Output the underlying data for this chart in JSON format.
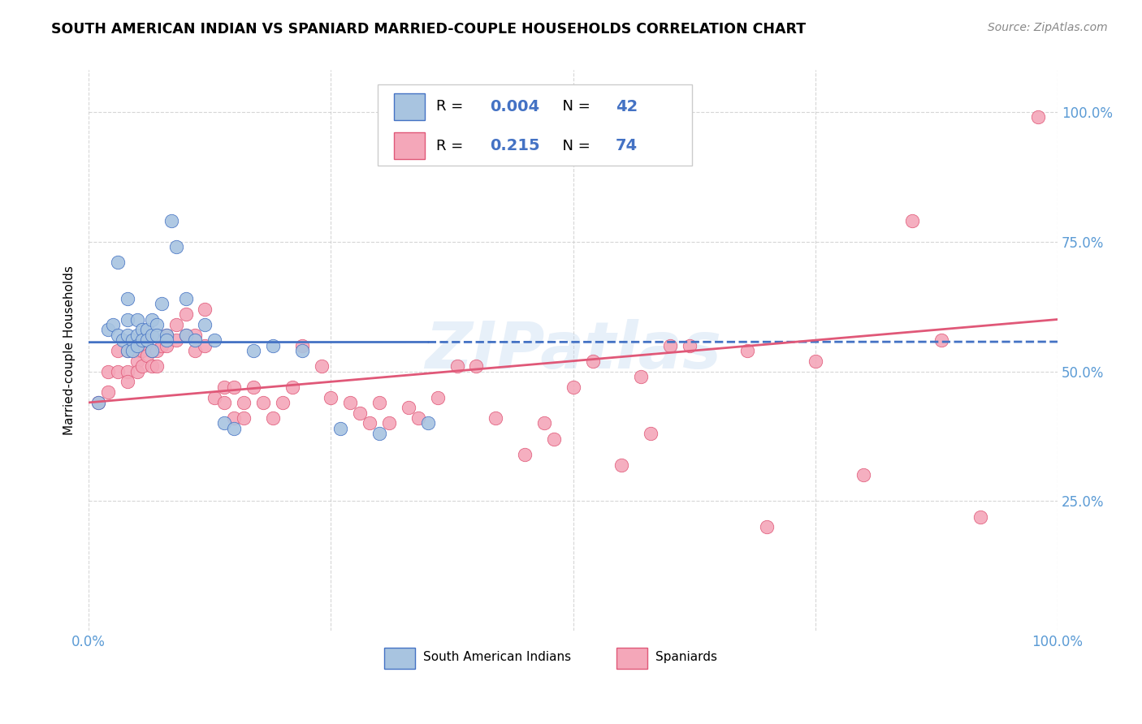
{
  "title": "SOUTH AMERICAN INDIAN VS SPANIARD MARRIED-COUPLE HOUSEHOLDS CORRELATION CHART",
  "source": "Source: ZipAtlas.com",
  "ylabel": "Married-couple Households",
  "color_blue": "#a8c4e0",
  "color_pink": "#f4a7b9",
  "line_blue": "#4472c4",
  "line_pink": "#e05878",
  "axis_color": "#5b9bd5",
  "background_color": "#ffffff",
  "watermark": "ZIPatlas",
  "blue_r": "0.004",
  "blue_n": "42",
  "pink_r": "0.215",
  "pink_n": "74",
  "blue_points_x": [
    0.01,
    0.02,
    0.025,
    0.03,
    0.03,
    0.035,
    0.04,
    0.04,
    0.04,
    0.04,
    0.045,
    0.045,
    0.05,
    0.05,
    0.05,
    0.055,
    0.055,
    0.06,
    0.06,
    0.065,
    0.065,
    0.065,
    0.07,
    0.07,
    0.075,
    0.08,
    0.08,
    0.085,
    0.09,
    0.1,
    0.1,
    0.11,
    0.12,
    0.13,
    0.14,
    0.15,
    0.17,
    0.19,
    0.22,
    0.26,
    0.3,
    0.35
  ],
  "blue_points_y": [
    0.44,
    0.58,
    0.59,
    0.71,
    0.57,
    0.56,
    0.64,
    0.6,
    0.57,
    0.54,
    0.56,
    0.54,
    0.6,
    0.57,
    0.55,
    0.58,
    0.56,
    0.58,
    0.56,
    0.6,
    0.57,
    0.54,
    0.59,
    0.57,
    0.63,
    0.57,
    0.56,
    0.79,
    0.74,
    0.64,
    0.57,
    0.56,
    0.59,
    0.56,
    0.4,
    0.39,
    0.54,
    0.55,
    0.54,
    0.39,
    0.38,
    0.4
  ],
  "pink_points_x": [
    0.01,
    0.02,
    0.02,
    0.03,
    0.03,
    0.04,
    0.04,
    0.04,
    0.05,
    0.05,
    0.05,
    0.055,
    0.055,
    0.06,
    0.06,
    0.065,
    0.065,
    0.07,
    0.07,
    0.075,
    0.08,
    0.08,
    0.09,
    0.09,
    0.1,
    0.1,
    0.11,
    0.11,
    0.12,
    0.12,
    0.13,
    0.14,
    0.14,
    0.15,
    0.15,
    0.16,
    0.16,
    0.17,
    0.18,
    0.19,
    0.2,
    0.21,
    0.22,
    0.24,
    0.25,
    0.27,
    0.28,
    0.29,
    0.3,
    0.31,
    0.33,
    0.34,
    0.36,
    0.38,
    0.4,
    0.42,
    0.45,
    0.47,
    0.48,
    0.5,
    0.52,
    0.55,
    0.57,
    0.58,
    0.6,
    0.62,
    0.68,
    0.7,
    0.75,
    0.8,
    0.85,
    0.88,
    0.92,
    0.98
  ],
  "pink_points_y": [
    0.44,
    0.5,
    0.46,
    0.54,
    0.5,
    0.54,
    0.5,
    0.48,
    0.54,
    0.52,
    0.5,
    0.54,
    0.51,
    0.56,
    0.53,
    0.54,
    0.51,
    0.54,
    0.51,
    0.55,
    0.57,
    0.55,
    0.59,
    0.56,
    0.61,
    0.57,
    0.57,
    0.54,
    0.62,
    0.55,
    0.45,
    0.47,
    0.44,
    0.41,
    0.47,
    0.44,
    0.41,
    0.47,
    0.44,
    0.41,
    0.44,
    0.47,
    0.55,
    0.51,
    0.45,
    0.44,
    0.42,
    0.4,
    0.44,
    0.4,
    0.43,
    0.41,
    0.45,
    0.51,
    0.51,
    0.41,
    0.34,
    0.4,
    0.37,
    0.47,
    0.52,
    0.32,
    0.49,
    0.38,
    0.55,
    0.55,
    0.54,
    0.2,
    0.52,
    0.3,
    0.79,
    0.56,
    0.22,
    0.99
  ]
}
